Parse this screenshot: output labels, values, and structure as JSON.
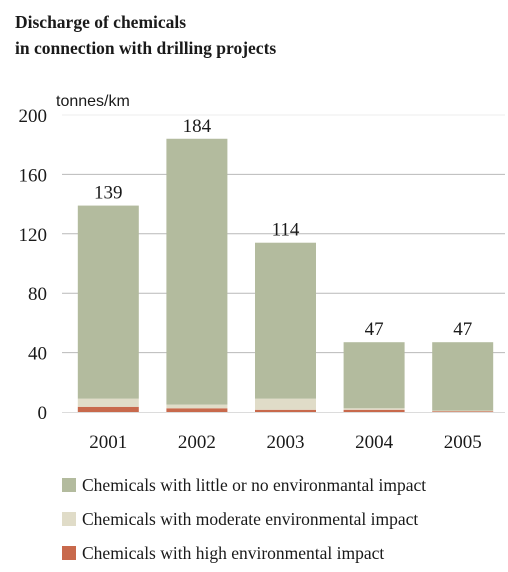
{
  "title": {
    "line1": "Discharge of chemicals",
    "line2": "in connection with drilling projects"
  },
  "colors": {
    "little": "#b3bb9e",
    "moderate": "#e0dcc8",
    "high": "#c8694c",
    "grid": "#b9b9b9"
  },
  "chart_data": {
    "type": "bar",
    "stacked": true,
    "categories": [
      "2001",
      "2002",
      "2003",
      "2004",
      "2005"
    ],
    "series": [
      {
        "name": "Chemicals with high environmental impact",
        "values": [
          3.5,
          2.5,
          1.5,
          1.5,
          0.5
        ]
      },
      {
        "name": "Chemicals with moderate environmental impact",
        "values": [
          5.5,
          2.5,
          7.5,
          1.0,
          0.5
        ]
      },
      {
        "name": "Chemicals with little or no environmantal impact",
        "values": [
          130,
          179,
          105,
          44.5,
          46
        ]
      }
    ],
    "totals": [
      139,
      184,
      114,
      47,
      47
    ],
    "total_labels": [
      "139",
      "184",
      "114",
      "47",
      "47"
    ],
    "ylabel": "tonnes/km",
    "ylim": [
      0,
      200
    ],
    "yticks": [
      0,
      40,
      80,
      120,
      160,
      200
    ],
    "ytick_labels": [
      "0",
      "40",
      "80",
      "120",
      "160",
      "200"
    ],
    "grid": true,
    "legend_position": "bottom"
  },
  "legend": [
    {
      "label": "Chemicals with little or no environmantal impact",
      "color": "#b3bb9e"
    },
    {
      "label": "Chemicals with moderate environmental impact",
      "color": "#e0dcc8"
    },
    {
      "label": "Chemicals with high environmental impact",
      "color": "#c8694c"
    }
  ]
}
